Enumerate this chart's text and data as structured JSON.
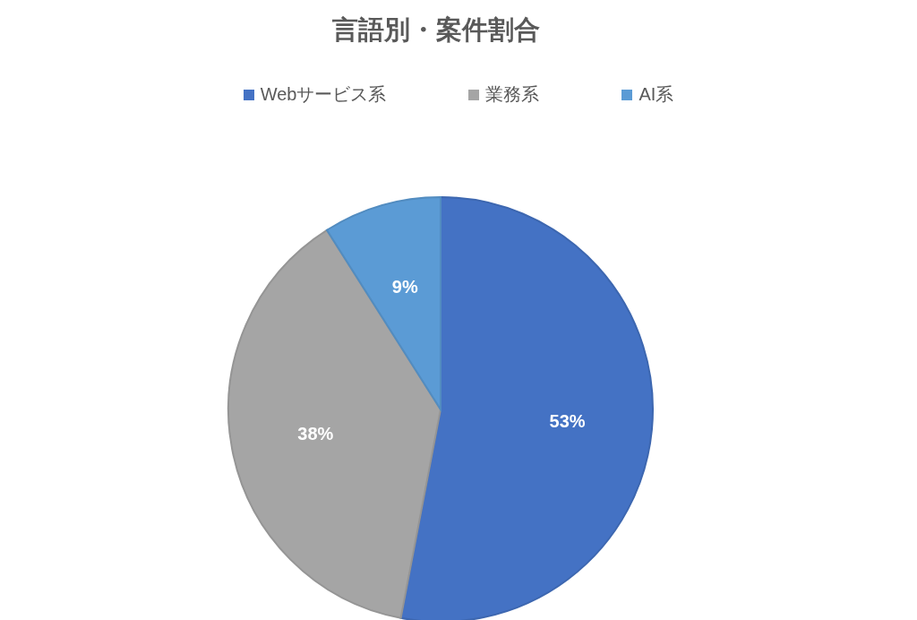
{
  "chart_data": {
    "type": "pie",
    "title": "言語別・案件割合",
    "categories": [
      "Webサービス系",
      "業務系",
      "AI系"
    ],
    "values": [
      53,
      38,
      9
    ],
    "value_labels": [
      "53%",
      "38%",
      "9%"
    ],
    "colors": [
      "#4472c4",
      "#a5a5a5",
      "#5b9bd5"
    ],
    "legend": "top"
  }
}
